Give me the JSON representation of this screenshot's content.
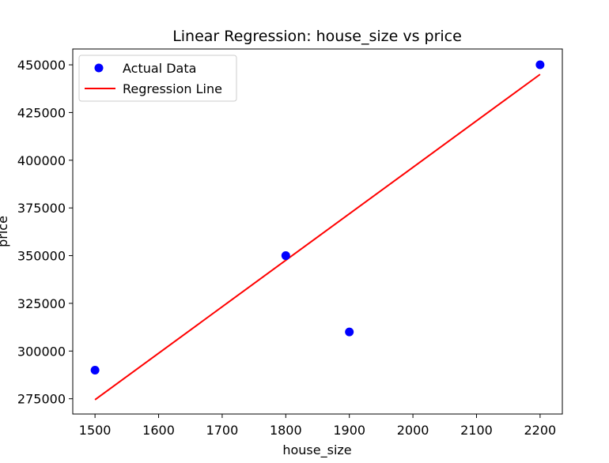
{
  "chart_data": {
    "type": "scatter",
    "title": "Linear Regression: house_size vs price",
    "xlabel": "house_size",
    "ylabel": "price",
    "xlim": [
      1465,
      2235
    ],
    "ylim": [
      267000,
      458300
    ],
    "xticks": [
      1500,
      1600,
      1700,
      1800,
      1900,
      2000,
      2100,
      2200
    ],
    "yticks": [
      275000,
      300000,
      325000,
      350000,
      375000,
      400000,
      425000,
      450000
    ],
    "grid": false,
    "legend_position": "top-left",
    "series": [
      {
        "name": "Actual Data",
        "kind": "scatter",
        "color": "#0000ff",
        "x": [
          1500,
          1800,
          1900,
          2200
        ],
        "y": [
          290000,
          350000,
          310000,
          450000
        ]
      },
      {
        "name": "Regression Line",
        "kind": "line",
        "color": "#ff0000",
        "x": [
          1500,
          2200
        ],
        "y": [
          274500,
          445000
        ]
      }
    ]
  }
}
